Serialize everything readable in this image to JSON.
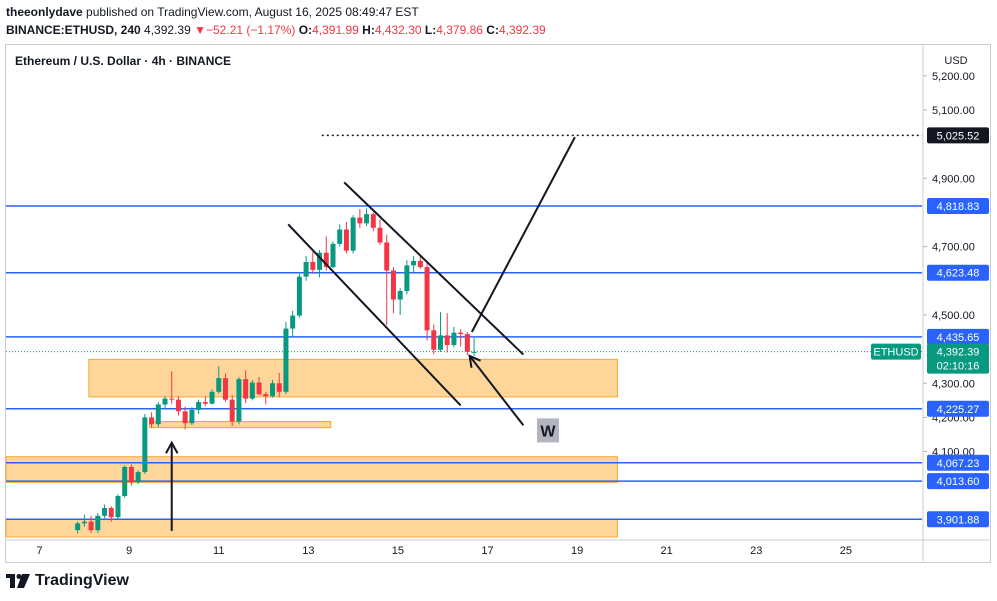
{
  "header": {
    "author": "theeonlydave",
    "published_text": "published on TradingView.com, August 16, 2025 08:49:47 EST",
    "symbol": "BINANCE:ETHUSD, 240",
    "last": "4,392.39",
    "change_arrow": "▼",
    "change": "−52.21 (−1.17%)",
    "o_label": "O:",
    "o_value": "4,391.99",
    "h_label": "H:",
    "h_value": "4,432.30",
    "l_label": "L:",
    "l_value": "4,379.86",
    "c_label": "C:",
    "c_value": "4,392.39"
  },
  "footer": {
    "brand": "TradingView",
    "logo_icon": "tradingview-logo-icon"
  },
  "colors": {
    "up": "#089981",
    "down": "#f23645",
    "line": "#2962ff",
    "zone_fill": "#ffd699",
    "zone_stroke": "#f7a733",
    "label_bg": "#2962ff",
    "price_bg": "#089981"
  },
  "chart_data": {
    "type": "candlestick",
    "title": "Ethereum / U.S. Dollar · 4h · BINANCE",
    "currency": "USD",
    "ylim": [
      3850,
      5290
    ],
    "xlim": [
      6.25,
      26.7
    ],
    "y_ticks": [
      "5,200.00",
      "5,100.00",
      "4,900.00",
      "4,700.00",
      "4,500.00",
      "4,300.00",
      "4,200.00",
      "4,100.00"
    ],
    "y_tick_values": [
      5200,
      5100,
      4900,
      4700,
      4500,
      4300,
      4200,
      4100
    ],
    "x_ticks": [
      "7",
      "9",
      "11",
      "13",
      "15",
      "17",
      "19",
      "21",
      "23",
      "25"
    ],
    "x_tick_values": [
      7,
      9,
      11,
      13,
      15,
      17,
      19,
      21,
      23,
      25
    ],
    "horizontal_levels": [
      {
        "price": 4818.83,
        "label": "4,818.83"
      },
      {
        "price": 4623.48,
        "label": "4,623.48"
      },
      {
        "price": 4435.65,
        "label": "4,435.65"
      },
      {
        "price": 4225.27,
        "label": "4,225.27"
      },
      {
        "price": 4067.23,
        "label": "4,067.23"
      },
      {
        "price": 4013.6,
        "label": "4,013.60"
      },
      {
        "price": 3901.88,
        "label": "3,901.88"
      }
    ],
    "target": {
      "price": 5025.52,
      "label": "5,025.52",
      "x_start": 13.3,
      "x_end": 26.7
    },
    "current_price": {
      "symbol": "ETHUSD",
      "price": 4392.39,
      "label": "4,392.39",
      "countdown": "02:10:16"
    },
    "zones": [
      {
        "x0": 8.1,
        "x1": 19.9,
        "y0": 4260,
        "y1": 4370
      },
      {
        "x0": 9.45,
        "x1": 13.5,
        "y0": 4170,
        "y1": 4188
      },
      {
        "x0": 6.25,
        "x1": 19.9,
        "y0": 4010,
        "y1": 4085
      },
      {
        "x0": 6.25,
        "x1": 19.9,
        "y0": 3850,
        "y1": 3902
      }
    ],
    "channel_lines": [
      {
        "x0": 12.55,
        "y0": 4765,
        "x1": 16.4,
        "y1": 4235
      },
      {
        "x0": 13.8,
        "y0": 4888,
        "x1": 17.8,
        "y1": 4384
      }
    ],
    "projection": {
      "points": [
        [
          16.65,
          4450
        ],
        [
          18.95,
          5020
        ]
      ]
    },
    "pullback_arrow": {
      "from": [
        17.8,
        4177
      ],
      "to": [
        16.6,
        4380
      ]
    },
    "up_arrow": {
      "from": [
        9.95,
        3868
      ],
      "to": [
        9.95,
        4126
      ]
    },
    "annotation": {
      "text": "W",
      "x": 18.35,
      "y": 4162
    },
    "candles": [
      [
        7.85,
        3870,
        3895,
        3860,
        3890
      ],
      [
        8.0,
        3890,
        3915,
        3880,
        3895
      ],
      [
        8.15,
        3895,
        3912,
        3862,
        3870
      ],
      [
        8.3,
        3870,
        3920,
        3862,
        3912
      ],
      [
        8.45,
        3912,
        3945,
        3905,
        3935
      ],
      [
        8.6,
        3935,
        3940,
        3895,
        3908
      ],
      [
        8.75,
        3908,
        3975,
        3902,
        3970
      ],
      [
        8.9,
        3970,
        4060,
        3965,
        4055
      ],
      [
        9.05,
        4055,
        4062,
        4000,
        4010
      ],
      [
        9.2,
        4010,
        4045,
        4005,
        4040
      ],
      [
        9.35,
        4040,
        4210,
        4035,
        4200
      ],
      [
        9.5,
        4200,
        4215,
        4170,
        4180
      ],
      [
        9.65,
        4180,
        4245,
        4172,
        4238
      ],
      [
        9.8,
        4238,
        4262,
        4225,
        4255
      ],
      [
        9.95,
        4255,
        4335,
        4240,
        4252
      ],
      [
        10.1,
        4252,
        4262,
        4205,
        4218
      ],
      [
        10.25,
        4218,
        4232,
        4165,
        4183
      ],
      [
        10.4,
        4183,
        4230,
        4178,
        4222
      ],
      [
        10.55,
        4222,
        4252,
        4210,
        4245
      ],
      [
        10.7,
        4245,
        4262,
        4232,
        4240
      ],
      [
        10.85,
        4240,
        4282,
        4238,
        4275
      ],
      [
        11.0,
        4275,
        4350,
        4270,
        4315
      ],
      [
        11.15,
        4315,
        4328,
        4245,
        4252
      ],
      [
        11.3,
        4252,
        4265,
        4175,
        4188
      ],
      [
        11.45,
        4188,
        4318,
        4180,
        4312
      ],
      [
        11.6,
        4312,
        4338,
        4242,
        4255
      ],
      [
        11.75,
        4255,
        4310,
        4250,
        4302
      ],
      [
        11.9,
        4302,
        4318,
        4265,
        4268
      ],
      [
        12.05,
        4268,
        4275,
        4238,
        4262
      ],
      [
        12.2,
        4262,
        4310,
        4258,
        4300
      ],
      [
        12.35,
        4300,
        4330,
        4260,
        4275
      ],
      [
        12.5,
        4275,
        4480,
        4268,
        4460
      ],
      [
        12.65,
        4460,
        4512,
        4435,
        4498
      ],
      [
        12.8,
        4498,
        4620,
        4492,
        4612
      ],
      [
        12.95,
        4612,
        4672,
        4600,
        4655
      ],
      [
        13.1,
        4655,
        4685,
        4620,
        4632
      ],
      [
        13.25,
        4632,
        4690,
        4610,
        4682
      ],
      [
        13.4,
        4682,
        4730,
        4630,
        4640
      ],
      [
        13.55,
        4640,
        4715,
        4636,
        4708
      ],
      [
        13.7,
        4708,
        4765,
        4700,
        4750
      ],
      [
        13.85,
        4750,
        4772,
        4680,
        4688
      ],
      [
        14.0,
        4688,
        4792,
        4680,
        4785
      ],
      [
        14.15,
        4785,
        4810,
        4755,
        4768
      ],
      [
        14.3,
        4768,
        4812,
        4760,
        4795
      ],
      [
        14.45,
        4795,
        4800,
        4745,
        4755
      ],
      [
        14.6,
        4755,
        4780,
        4705,
        4712
      ],
      [
        14.75,
        4712,
        4735,
        4470,
        4630
      ],
      [
        14.9,
        4630,
        4640,
        4505,
        4545
      ],
      [
        15.05,
        4545,
        4578,
        4500,
        4570
      ],
      [
        15.2,
        4570,
        4660,
        4560,
        4645
      ],
      [
        15.35,
        4645,
        4672,
        4625,
        4658
      ],
      [
        15.5,
        4658,
        4670,
        4635,
        4640
      ],
      [
        15.65,
        4640,
        4652,
        4425,
        4455
      ],
      [
        15.8,
        4455,
        4472,
        4385,
        4398
      ],
      [
        15.95,
        4398,
        4508,
        4392,
        4440
      ],
      [
        16.1,
        4440,
        4505,
        4390,
        4412
      ],
      [
        16.25,
        4412,
        4465,
        4405,
        4448
      ],
      [
        16.4,
        4448,
        4458,
        4408,
        4444
      ],
      [
        16.55,
        4444,
        4450,
        4382,
        4392
      ],
      [
        16.7,
        4392,
        4432,
        4380,
        4392
      ]
    ]
  }
}
